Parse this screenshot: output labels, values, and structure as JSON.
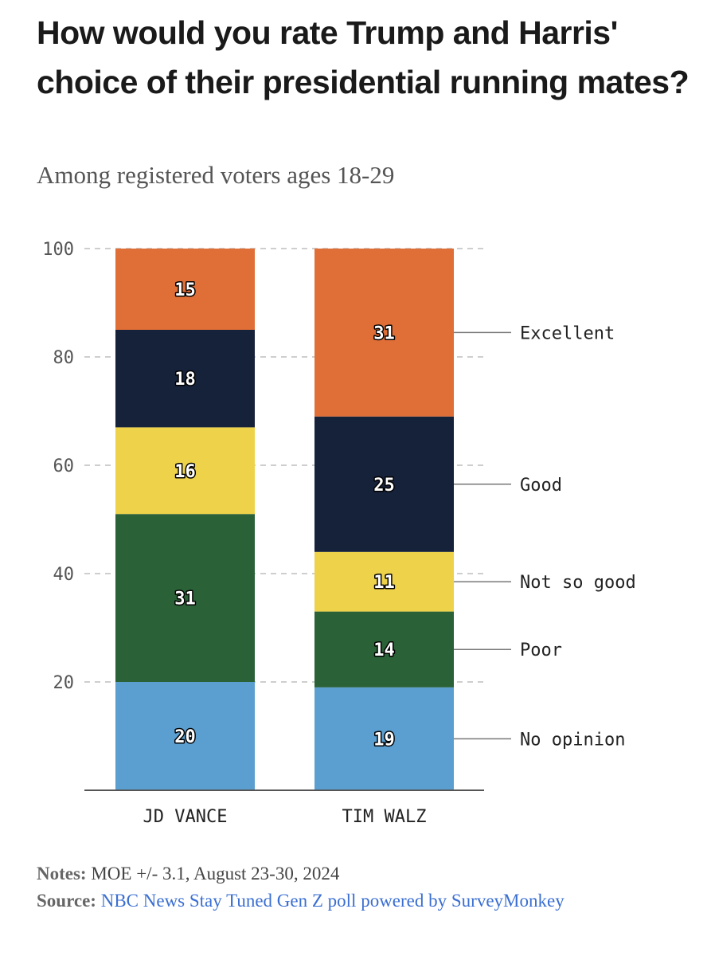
{
  "title": "How would you rate Trump and Harris' choice of their presidential running mates?",
  "subtitle": "Among registered voters ages 18-29",
  "colors": {
    "Excellent": "#e06e37",
    "Good": "#16213a",
    "Not so good": "#eed24a",
    "Poor": "#2a6137",
    "No opinion": "#5b9fd0"
  },
  "chart_data": {
    "type": "bar",
    "stacked": true,
    "title": "How would you rate Trump and Harris' choice of their presidential running mates?",
    "subtitle": "Among registered voters ages 18-29",
    "categories": [
      "JD VANCE",
      "TIM WALZ"
    ],
    "series": [
      {
        "name": "No opinion",
        "values": [
          20,
          19
        ]
      },
      {
        "name": "Poor",
        "values": [
          31,
          14
        ]
      },
      {
        "name": "Not so good",
        "values": [
          16,
          11
        ]
      },
      {
        "name": "Good",
        "values": [
          18,
          25
        ]
      },
      {
        "name": "Excellent",
        "values": [
          15,
          31
        ]
      }
    ],
    "ylim": [
      0,
      100
    ],
    "yticks": [
      20,
      40,
      60,
      80,
      100
    ],
    "grid": true,
    "legend": "right, labels attached to TIM WALZ bar segments"
  },
  "notes": {
    "notes_label": "Notes:",
    "notes_text": "MOE +/- 3.1, August 23-30, 2024",
    "source_label": "Source:",
    "source_text": "NBC News Stay Tuned Gen Z poll powered by SurveyMonkey"
  }
}
